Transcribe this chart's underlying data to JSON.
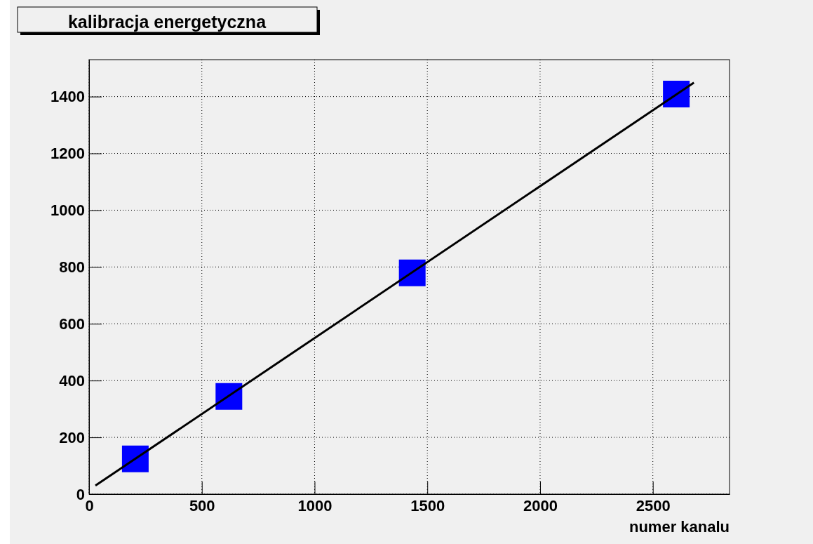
{
  "chart_data": {
    "type": "scatter",
    "title": "kalibracja energetyczna",
    "xlabel": "numer kanalu",
    "xlim": [
      0,
      2840
    ],
    "xticks": [
      0,
      500,
      1000,
      1500,
      2000,
      2500
    ],
    "ylim": [
      0,
      1530
    ],
    "yticks": [
      0,
      200,
      400,
      600,
      800,
      1000,
      1200,
      1400
    ],
    "grid": true,
    "series": [
      {
        "marker": "square",
        "color": "#0000ff",
        "x": [
          205,
          620,
          1433,
          2604
        ],
        "values": [
          124,
          344,
          779,
          1409
        ]
      },
      {
        "type": "line",
        "color": "#000000",
        "x": [
          28,
          2682
        ],
        "values": [
          30,
          1449
        ]
      }
    ]
  }
}
